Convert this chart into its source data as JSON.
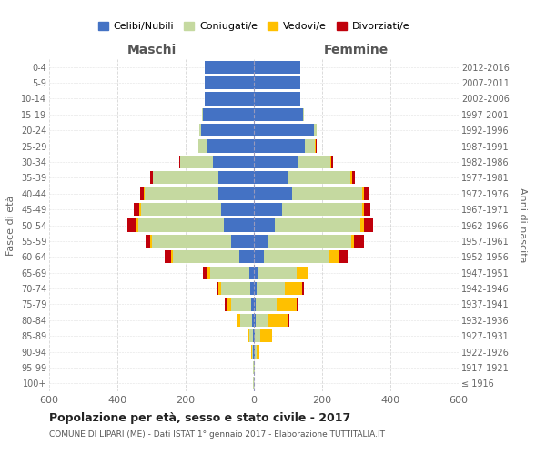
{
  "age_groups": [
    "100+",
    "95-99",
    "90-94",
    "85-89",
    "80-84",
    "75-79",
    "70-74",
    "65-69",
    "60-64",
    "55-59",
    "50-54",
    "45-49",
    "40-44",
    "35-39",
    "30-34",
    "25-29",
    "20-24",
    "15-19",
    "10-14",
    "5-9",
    "0-4"
  ],
  "birth_years": [
    "≤ 1916",
    "1917-1921",
    "1922-1926",
    "1927-1931",
    "1932-1936",
    "1937-1941",
    "1942-1946",
    "1947-1951",
    "1952-1956",
    "1957-1961",
    "1962-1966",
    "1967-1971",
    "1972-1976",
    "1977-1981",
    "1982-1986",
    "1987-1991",
    "1992-1996",
    "1997-2001",
    "2002-2006",
    "2007-2011",
    "2012-2016"
  ],
  "maschi": {
    "celibi": [
      1,
      1,
      2,
      3,
      5,
      8,
      10,
      14,
      42,
      68,
      88,
      95,
      105,
      105,
      120,
      140,
      155,
      150,
      145,
      145,
      145
    ],
    "coniugati": [
      1,
      1,
      4,
      10,
      35,
      60,
      85,
      115,
      195,
      230,
      250,
      235,
      215,
      190,
      95,
      22,
      4,
      2,
      0,
      0,
      0
    ],
    "vedovi": [
      0,
      0,
      1,
      5,
      10,
      12,
      10,
      6,
      5,
      5,
      5,
      5,
      2,
      2,
      0,
      0,
      0,
      0,
      0,
      0,
      0
    ],
    "divorziati": [
      0,
      0,
      0,
      0,
      2,
      5,
      5,
      15,
      20,
      15,
      28,
      18,
      12,
      8,
      5,
      2,
      0,
      0,
      0,
      0,
      0
    ]
  },
  "femmine": {
    "nubili": [
      1,
      1,
      2,
      3,
      5,
      5,
      8,
      12,
      28,
      42,
      62,
      82,
      112,
      102,
      130,
      150,
      175,
      145,
      135,
      135,
      135
    ],
    "coniugate": [
      0,
      1,
      5,
      15,
      38,
      62,
      82,
      112,
      192,
      242,
      250,
      235,
      205,
      180,
      95,
      28,
      8,
      2,
      0,
      0,
      0
    ],
    "vedove": [
      0,
      1,
      8,
      35,
      58,
      58,
      52,
      32,
      30,
      10,
      10,
      5,
      5,
      5,
      2,
      2,
      0,
      0,
      0,
      0,
      0
    ],
    "divorziate": [
      0,
      0,
      0,
      0,
      2,
      5,
      5,
      5,
      25,
      28,
      28,
      18,
      15,
      10,
      5,
      5,
      0,
      0,
      0,
      0,
      0
    ]
  },
  "colors": {
    "celibi": "#4472c4",
    "coniugati": "#c5d9a0",
    "vedovi": "#ffc000",
    "divorziati": "#c0000b"
  },
  "legend_labels": [
    "Celibi/Nubili",
    "Coniugati/e",
    "Vedovi/e",
    "Divorziati/e"
  ],
  "title": "Popolazione per età, sesso e stato civile - 2017",
  "subtitle": "COMUNE DI LIPARI (ME) - Dati ISTAT 1° gennaio 2017 - Elaborazione TUTTITALIA.IT",
  "xlabel_left": "Maschi",
  "xlabel_right": "Femmine",
  "ylabel_left": "Fasce di età",
  "ylabel_right": "Anni di nascita",
  "xlim": 600,
  "background_color": "#ffffff",
  "grid_color": "#cccccc"
}
